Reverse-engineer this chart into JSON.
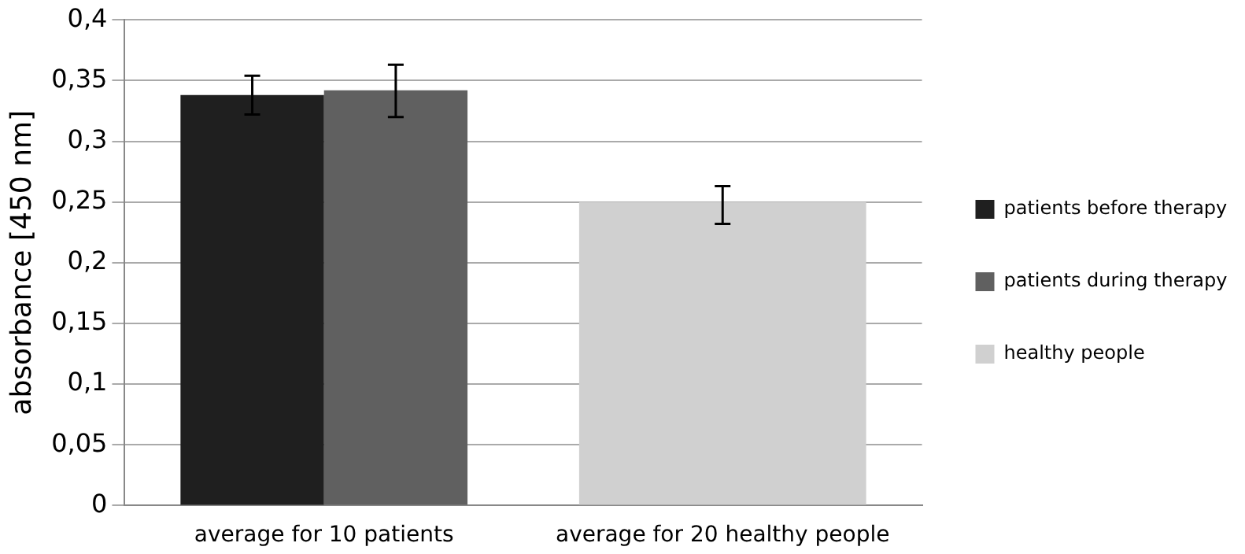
{
  "chart_data": {
    "type": "bar",
    "ylabel": "absorbance [450 nm]",
    "categories": [
      "average for 10 patients",
      "average for 20 healthy people"
    ],
    "series": [
      {
        "name": "patients before therapy",
        "color": "#1f1f1f",
        "values": [
          0.338,
          null
        ],
        "errors": [
          [
            0.322,
            0.354
          ],
          null
        ]
      },
      {
        "name": "patients during therapy",
        "color": "#606060",
        "values": [
          0.342,
          null
        ],
        "errors": [
          [
            0.32,
            0.363
          ],
          null
        ]
      },
      {
        "name": "healthy people",
        "color": "#d0d0d0",
        "values": [
          null,
          0.25
        ],
        "errors": [
          null,
          [
            0.232,
            0.263
          ]
        ]
      }
    ],
    "ylim": [
      0,
      0.4
    ],
    "yticks": [
      {
        "value": 0,
        "label": "0"
      },
      {
        "value": 0.05,
        "label": "0,05"
      },
      {
        "value": 0.1,
        "label": "0,1"
      },
      {
        "value": 0.15,
        "label": "0,15"
      },
      {
        "value": 0.2,
        "label": "0,2"
      },
      {
        "value": 0.25,
        "label": "0,25"
      },
      {
        "value": 0.3,
        "label": "0,3"
      },
      {
        "value": 0.35,
        "label": "0,35"
      },
      {
        "value": 0.4,
        "label": "0,4"
      }
    ],
    "grid": "y",
    "legend": "right"
  }
}
